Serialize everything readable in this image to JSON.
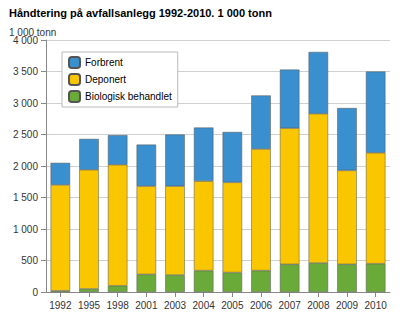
{
  "chart_data": {
    "type": "bar",
    "stacked": true,
    "title": "Håndtering på avfallsanlegg 1992-2010. 1 000 tonn",
    "ylabel": "1 000 tonn",
    "categories": [
      "1992",
      "1995",
      "1998",
      "2001",
      "2003",
      "2004",
      "2005",
      "2006",
      "2007",
      "2008",
      "2009",
      "2010"
    ],
    "series": [
      {
        "name": "Biologisk behandlet",
        "color": "#6aaa38",
        "values": [
          20,
          50,
          100,
          280,
          270,
          340,
          310,
          340,
          440,
          460,
          440,
          450
        ]
      },
      {
        "name": "Deponert",
        "color": "#f9c600",
        "values": [
          1680,
          1890,
          1920,
          1400,
          1410,
          1420,
          1430,
          1930,
          2160,
          2370,
          1490,
          1760
        ]
      },
      {
        "name": "Forbrent",
        "color": "#3a8fce",
        "values": [
          350,
          490,
          470,
          660,
          820,
          850,
          800,
          850,
          930,
          980,
          990,
          1290
        ]
      }
    ],
    "ylim": [
      0,
      4000
    ],
    "yticks": [
      0,
      500,
      {
        "value": 1000,
        "label": "1 000"
      },
      {
        "value": 1500,
        "label": "1 500"
      },
      {
        "value": 2000,
        "label": "2 000"
      },
      {
        "value": 2500,
        "label": "2 500"
      },
      {
        "value": 3000,
        "label": "3 000"
      },
      {
        "value": 3500,
        "label": "3 500"
      },
      {
        "value": 4000,
        "label": "4 000"
      }
    ],
    "grid": true,
    "legend": "upper left"
  }
}
